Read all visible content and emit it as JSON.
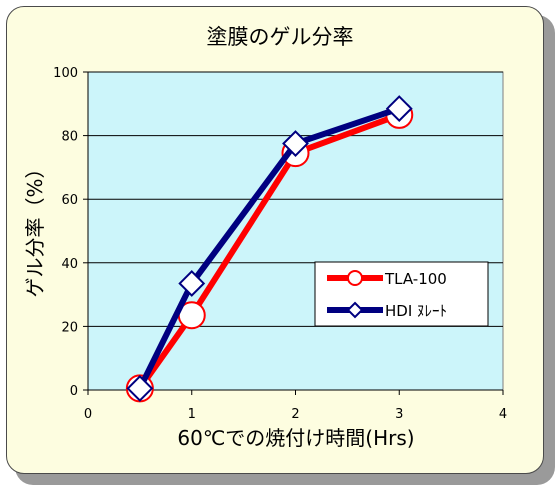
{
  "chart_data": {
    "type": "line",
    "title": "塗膜のゲル分率",
    "xlabel": "60℃での焼付け時間(Hrs)",
    "ylabel": "ゲル分率（%）",
    "xlim": [
      0,
      4
    ],
    "ylim": [
      0,
      100
    ],
    "xticks": [
      0,
      1,
      2,
      3,
      4
    ],
    "yticks": [
      0,
      20,
      40,
      60,
      80,
      100
    ],
    "grid": "horizontal",
    "legend_position": "right-middle",
    "plot_background": "#ccf5fa",
    "series": [
      {
        "name": "TLA-100",
        "color": "#ff0000",
        "marker": "circle",
        "x": [
          0.5,
          1,
          2,
          3
        ],
        "y": [
          0.5,
          23.5,
          74.5,
          86.5
        ]
      },
      {
        "name": "HDI ﾇﾚｰﾄ",
        "color": "#000080",
        "marker": "diamond",
        "x": [
          0.5,
          1,
          2,
          3
        ],
        "y": [
          0.5,
          33.5,
          77.5,
          88.5
        ]
      }
    ]
  }
}
